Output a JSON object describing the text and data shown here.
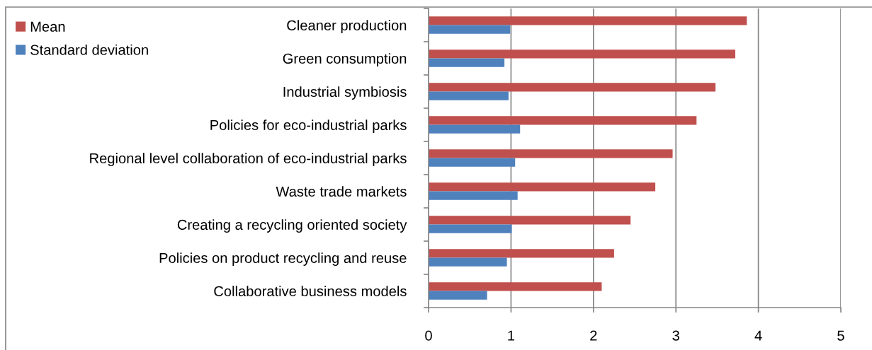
{
  "chart_data": {
    "type": "bar",
    "orientation": "horizontal",
    "categories": [
      "Cleaner production",
      "Green consumption",
      "Industrial symbiosis",
      "Policies for eco-industrial parks",
      "Regional level collaboration of eco-industrial parks",
      "Waste trade markets",
      "Creating a recycling oriented society",
      "Policies on product recycling and reuse",
      "Collaborative business models"
    ],
    "series": [
      {
        "name": "Mean",
        "color": "#c0504d",
        "values": [
          3.86,
          3.72,
          3.48,
          3.25,
          2.96,
          2.75,
          2.45,
          2.25,
          2.1
        ]
      },
      {
        "name": "Standard deviation",
        "color": "#4f81bd",
        "values": [
          0.99,
          0.92,
          0.97,
          1.11,
          1.05,
          1.08,
          1.01,
          0.95,
          0.71
        ]
      }
    ],
    "xlim": [
      0,
      5
    ],
    "xticks": [
      0,
      1,
      2,
      3,
      4,
      5
    ],
    "grid": "x",
    "legend": "top left"
  }
}
